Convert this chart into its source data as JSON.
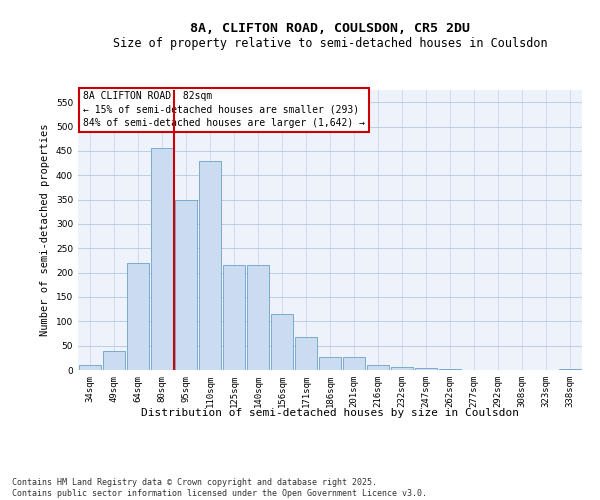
{
  "title_line1": "8A, CLIFTON ROAD, COULSDON, CR5 2DU",
  "title_line2": "Size of property relative to semi-detached houses in Coulsdon",
  "xlabel": "Distribution of semi-detached houses by size in Coulsdon",
  "ylabel": "Number of semi-detached properties",
  "categories": [
    "34sqm",
    "49sqm",
    "64sqm",
    "80sqm",
    "95sqm",
    "110sqm",
    "125sqm",
    "140sqm",
    "156sqm",
    "171sqm",
    "186sqm",
    "201sqm",
    "216sqm",
    "232sqm",
    "247sqm",
    "262sqm",
    "277sqm",
    "292sqm",
    "308sqm",
    "323sqm",
    "338sqm"
  ],
  "values": [
    10,
    38,
    220,
    455,
    350,
    430,
    215,
    215,
    115,
    68,
    27,
    27,
    10,
    7,
    4,
    2,
    1,
    1,
    1,
    1,
    3
  ],
  "bar_color": "#ccdcf0",
  "bar_edge_color": "#7aaad0",
  "vline_x_index": 3,
  "vline_color": "#cc0000",
  "ylim": [
    0,
    575
  ],
  "yticks": [
    0,
    50,
    100,
    150,
    200,
    250,
    300,
    350,
    400,
    450,
    500,
    550
  ],
  "annotation_text": "8A CLIFTON ROAD: 82sqm\n← 15% of semi-detached houses are smaller (293)\n84% of semi-detached houses are larger (1,642) →",
  "annotation_box_color": "#ffffff",
  "annotation_box_edge": "#cc0000",
  "footer_text": "Contains HM Land Registry data © Crown copyright and database right 2025.\nContains public sector information licensed under the Open Government Licence v3.0.",
  "bg_color": "#eef2fb",
  "grid_color": "#b8c8e0",
  "title_fontsize": 9.5,
  "subtitle_fontsize": 8.5,
  "ylabel_fontsize": 7.5,
  "xlabel_fontsize": 8,
  "tick_fontsize": 6.5,
  "annotation_fontsize": 7,
  "footer_fontsize": 6
}
